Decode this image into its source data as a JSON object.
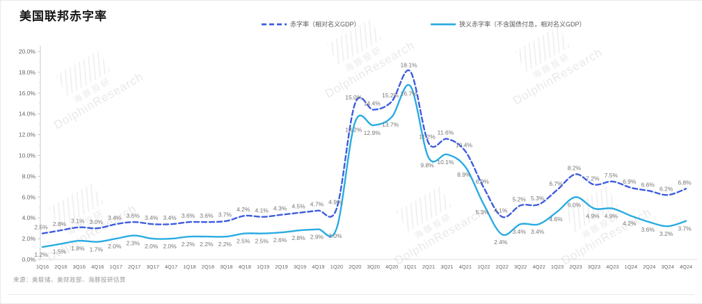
{
  "page": {
    "title": "美国联邦赤字率",
    "source_note": "来源：美联储、美财政部、海豚投研估算",
    "watermark": {
      "cn": "海豚投研",
      "en": "DolphinResearch"
    }
  },
  "chart_data": {
    "type": "line",
    "title": "美国联邦赤字率",
    "categories": [
      "1Q16",
      "2Q16",
      "3Q16",
      "4Q16",
      "1Q17",
      "2Q17",
      "3Q17",
      "4Q17",
      "1Q18",
      "2Q18",
      "3Q18",
      "4Q18",
      "1Q19",
      "2Q19",
      "3Q19",
      "4Q19",
      "1Q20",
      "2Q20",
      "3Q20",
      "4Q20",
      "1Q21",
      "2Q21",
      "3Q21",
      "4Q21",
      "1Q22",
      "2Q22",
      "3Q22",
      "4Q22",
      "1Q23",
      "2Q23",
      "3Q23",
      "4Q23",
      "1Q24",
      "2Q24",
      "3Q24",
      "4Q24"
    ],
    "series": [
      {
        "name": "赤字率（相对名义GDP）",
        "color": "#3D5BE0",
        "dash": true,
        "values": [
          2.5,
          2.8,
          3.1,
          3.0,
          3.4,
          3.6,
          3.4,
          3.4,
          3.6,
          3.6,
          3.7,
          4.2,
          4.1,
          4.3,
          4.5,
          4.7,
          4.9,
          15.0,
          14.4,
          15.2,
          18.1,
          11.2,
          11.6,
          10.4,
          6.9,
          4.1,
          5.2,
          5.3,
          6.7,
          8.2,
          7.2,
          7.5,
          6.9,
          6.6,
          6.2,
          6.8
        ]
      },
      {
        "name": "狭义赤字率（不含国债付息，相对名义GDP）",
        "color": "#29ABE2",
        "dash": false,
        "values": [
          1.2,
          1.5,
          1.8,
          1.7,
          2.0,
          2.3,
          2.0,
          2.0,
          2.2,
          2.2,
          2.2,
          2.5,
          2.5,
          2.6,
          2.8,
          2.9,
          3.0,
          13.2,
          12.9,
          13.7,
          16.7,
          9.8,
          10.1,
          8.9,
          5.3,
          2.4,
          3.4,
          3.4,
          4.6,
          6.0,
          4.9,
          4.9,
          4.2,
          3.6,
          3.2,
          3.7
        ]
      }
    ],
    "ylim": [
      0,
      20
    ],
    "ytick_step": 2,
    "ytick_suffix": "%",
    "grid": false,
    "legend_position": "top",
    "data_labels": true
  }
}
